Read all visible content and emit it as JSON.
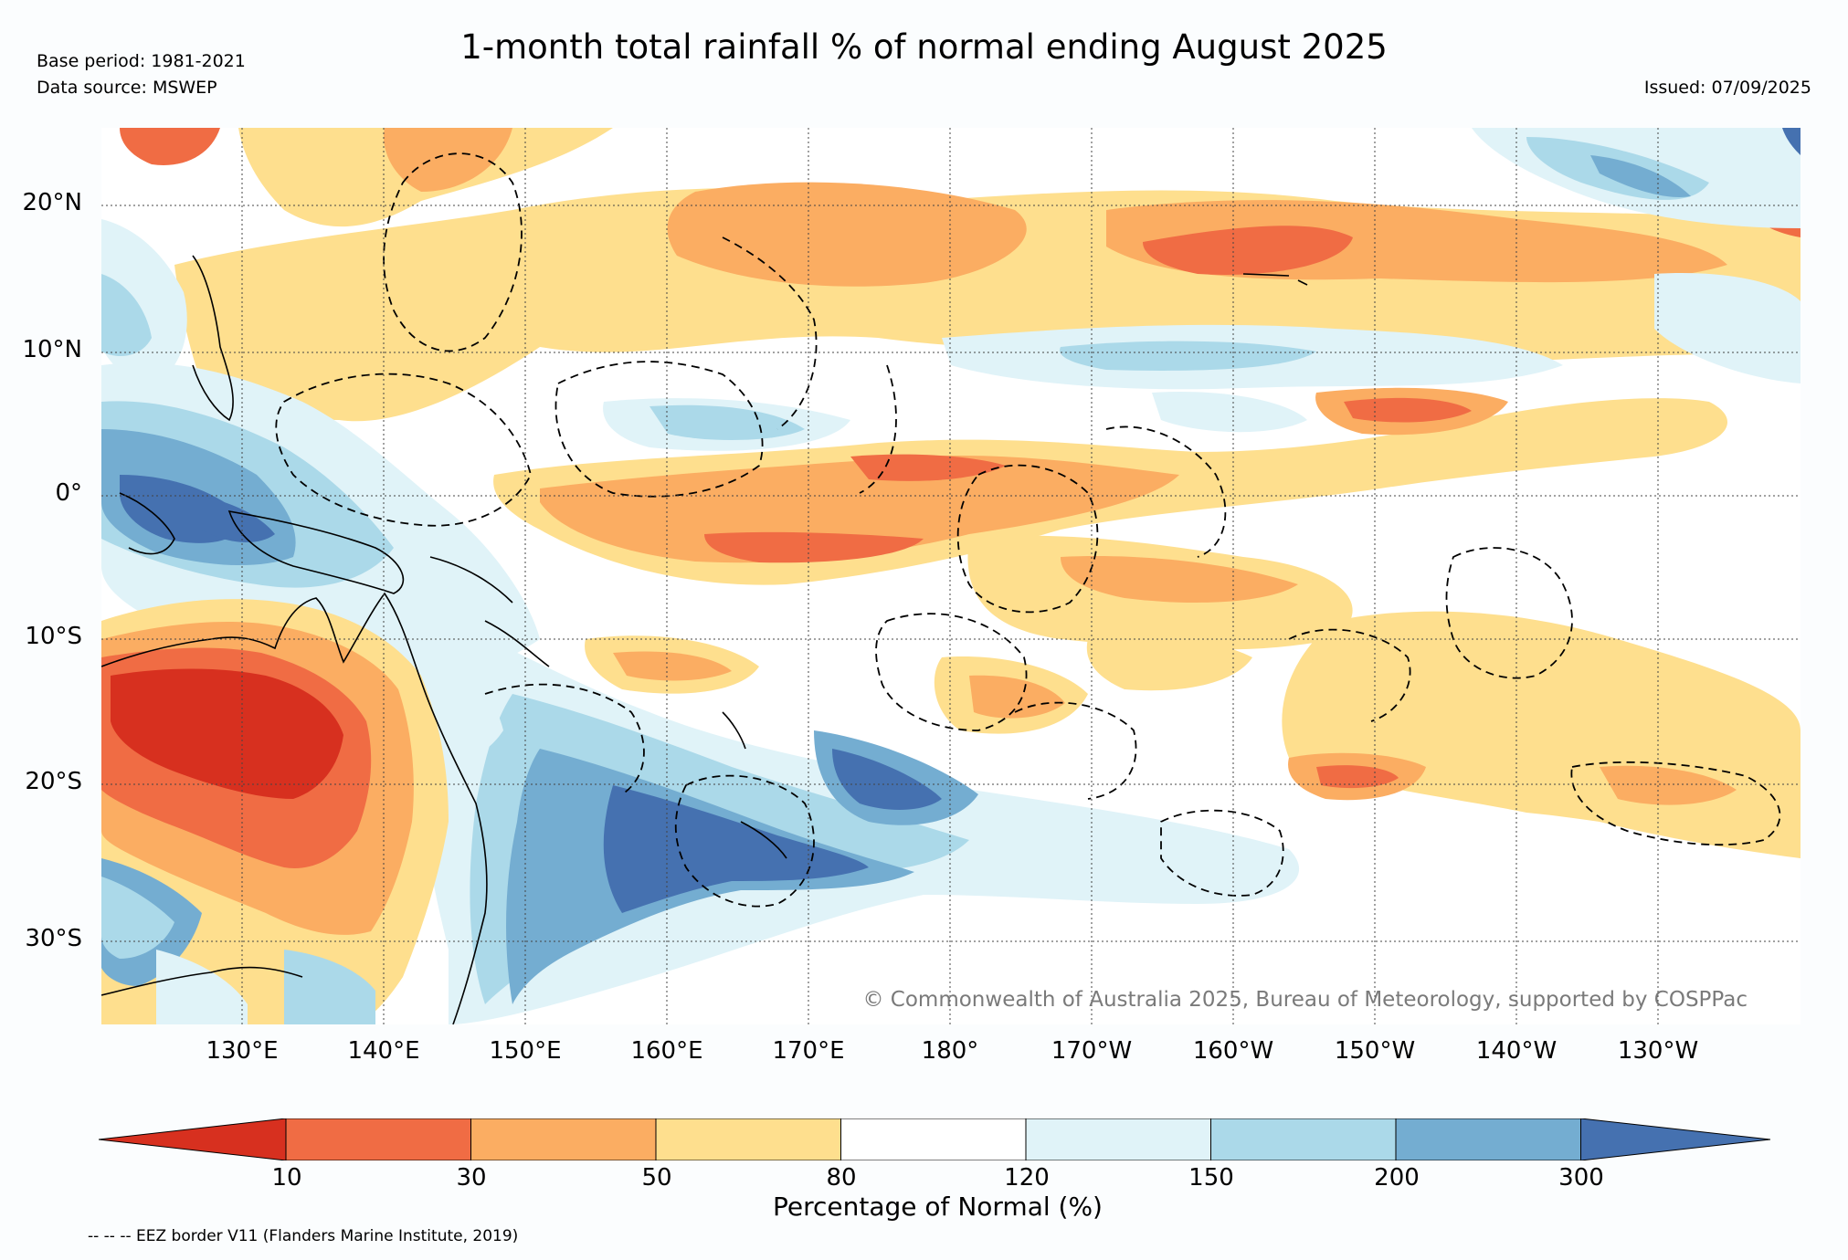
{
  "header": {
    "title": "1-month total rainfall % of normal ending August 2025",
    "base_period": "Base period: 1981-2021",
    "data_source": "Data source: MSWEP",
    "issued": "Issued: 07/09/2025"
  },
  "map": {
    "lat_labels": [
      "20°N",
      "10°N",
      "0°",
      "10°S",
      "20°S",
      "30°S"
    ],
    "lon_labels": [
      "130°E",
      "140°E",
      "150°E",
      "160°E",
      "170°E",
      "180°",
      "170°W",
      "160°W",
      "150°W",
      "140°W",
      "130°W"
    ],
    "copyright": "© Commonwealth of Australia 2025, Bureau of Meteorology, supported by COSPPac",
    "region": "Western and Central Pacific, Australia",
    "lon_range": [
      120,
      240
    ],
    "lat_range": [
      -36,
      25
    ]
  },
  "legend": {
    "label": "Percentage of Normal (%)",
    "ticks": [
      "10",
      "30",
      "50",
      "80",
      "120",
      "150",
      "200",
      "300"
    ],
    "colors": {
      "below_10": "#d7301f",
      "10_30": "#f06c44",
      "30_50": "#fbad62",
      "50_80": "#fedf8e",
      "80_120": "#ffffff",
      "120_150": "#e0f3f8",
      "150_200": "#abd9e9",
      "200_300": "#74add1",
      "above_300": "#4571b0"
    }
  },
  "footer": {
    "eez_note": "-- -- -- EEZ border V11 (Flanders Marine Institute, 2019)"
  }
}
